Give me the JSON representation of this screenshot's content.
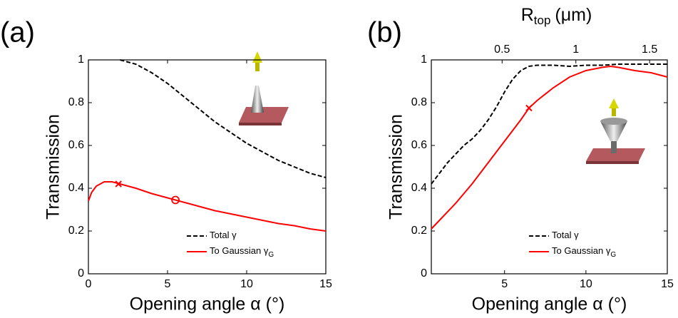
{
  "chart_data": [
    {
      "type": "line",
      "panel_label": "(a)",
      "xlabel": "Opening angle α (°)",
      "ylabel": "Transmission",
      "xlim": [
        0,
        15
      ],
      "xticks": [
        0,
        5,
        10,
        15
      ],
      "ylim": [
        0,
        1
      ],
      "yticks": [
        0,
        0.2,
        0.4,
        0.6,
        0.8,
        1
      ],
      "series": [
        {
          "name": "Total γ",
          "color": "#000000",
          "dash": true,
          "x": [
            2,
            3,
            4,
            5,
            6,
            7,
            8,
            9,
            10,
            11,
            12,
            13,
            14,
            15
          ],
          "values": [
            1.0,
            0.98,
            0.94,
            0.89,
            0.83,
            0.77,
            0.71,
            0.66,
            0.61,
            0.57,
            0.53,
            0.5,
            0.47,
            0.45
          ]
        },
        {
          "name": "To Gaussian γ",
          "name_sub": "G",
          "color": "#ff0000",
          "dash": false,
          "x": [
            0,
            0.2,
            0.5,
            1,
            1.5,
            2,
            3,
            4,
            5,
            5.5,
            6,
            7,
            8,
            9,
            10,
            11,
            12,
            13,
            14,
            15
          ],
          "values": [
            0.34,
            0.38,
            0.41,
            0.43,
            0.43,
            0.42,
            0.4,
            0.375,
            0.355,
            0.345,
            0.335,
            0.315,
            0.295,
            0.28,
            0.265,
            0.25,
            0.235,
            0.225,
            0.21,
            0.2
          ]
        }
      ],
      "markers": {
        "color": "#ff0000",
        "x": [
          1.9,
          5.5
        ],
        "values": [
          0.42,
          0.345
        ],
        "symbols": [
          "x",
          "o"
        ]
      }
    },
    {
      "type": "line",
      "panel_label": "(b)",
      "xlabel": "Opening angle α (°)",
      "ylabel": "Transmission",
      "x2label": "R",
      "x2label_sub": "top",
      "x2label_unit": "(μm)",
      "xlim": [
        0.5,
        15
      ],
      "xticks": [
        5,
        10,
        15
      ],
      "x2lim": [
        0.02,
        1.62
      ],
      "x2ticks": [
        0.5,
        1,
        1.5
      ],
      "ylim": [
        0,
        1
      ],
      "yticks": [
        0,
        0.2,
        0.4,
        0.6,
        0.8,
        1
      ],
      "series": [
        {
          "name": "Total γ",
          "color": "#000000",
          "dash": true,
          "x": [
            0.5,
            1,
            1.5,
            2,
            2.5,
            3,
            3.5,
            4,
            4.5,
            5,
            5.5,
            6,
            6.5,
            7,
            8,
            9,
            10,
            11,
            12,
            13,
            14,
            15
          ],
          "values": [
            0.42,
            0.47,
            0.52,
            0.56,
            0.6,
            0.63,
            0.67,
            0.72,
            0.78,
            0.85,
            0.91,
            0.95,
            0.97,
            0.975,
            0.975,
            0.97,
            0.975,
            0.975,
            0.98,
            0.98,
            0.98,
            0.98
          ]
        },
        {
          "name": "To Gaussian γ",
          "name_sub": "G",
          "color": "#ff0000",
          "dash": false,
          "x": [
            0.5,
            1,
            2,
            3,
            4,
            5,
            6,
            6.5,
            7,
            8,
            9,
            10,
            11,
            11.5,
            12,
            13,
            14,
            15
          ],
          "values": [
            0.21,
            0.25,
            0.33,
            0.42,
            0.52,
            0.62,
            0.72,
            0.775,
            0.81,
            0.87,
            0.92,
            0.95,
            0.965,
            0.97,
            0.965,
            0.95,
            0.94,
            0.92
          ]
        }
      ],
      "markers": {
        "color": "#ff0000",
        "x": [
          6.5
        ],
        "values": [
          0.775
        ],
        "symbols": [
          "x"
        ]
      }
    }
  ]
}
